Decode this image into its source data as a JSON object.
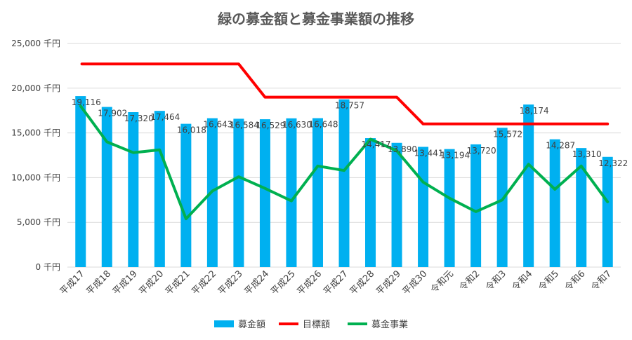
{
  "chart_data": {
    "type": "bar",
    "title": "緑の募金額と募金事業額の推移",
    "categories": [
      "平成17",
      "平成18",
      "平成19",
      "平成20",
      "平成21",
      "平成22",
      "平成23",
      "平成24",
      "平成25",
      "平成26",
      "平成27",
      "平成28",
      "平成29",
      "平成30",
      "令和元",
      "令和2",
      "令和3",
      "令和4",
      "令和5",
      "令和6",
      "令和7"
    ],
    "y_ticks": [
      "0 千円",
      "5,000 千円",
      "10,000 千円",
      "15,000 千円",
      "20,000 千円",
      "25,000 千円"
    ],
    "ylim": [
      0,
      25000
    ],
    "grid": true,
    "series": [
      {
        "name": "募金額",
        "type": "bar",
        "color": "#00B0F0",
        "values": [
          19116,
          17902,
          17320,
          17464,
          16018,
          16643,
          16584,
          16529,
          16630,
          16648,
          18757,
          14417,
          13890,
          13441,
          13194,
          13720,
          15572,
          18174,
          14287,
          13310,
          12322
        ],
        "labels": [
          "19,116",
          "17,902",
          "17,320",
          "17,464",
          "16,018",
          "16,643",
          "16,584",
          "16,529",
          "16,630",
          "16,648",
          "18,757",
          "14,417",
          "13,890",
          "13,441",
          "13,194",
          "13,720",
          "15,572",
          "18,174",
          "14,287",
          "13,310",
          "12,322"
        ]
      },
      {
        "name": "目標額",
        "type": "line",
        "color": "#FF0000",
        "values": [
          22700,
          22700,
          22700,
          22700,
          22700,
          22700,
          22700,
          19000,
          19000,
          19000,
          19000,
          19000,
          19000,
          16000,
          16000,
          16000,
          16000,
          16000,
          16000,
          16000,
          16000
        ]
      },
      {
        "name": "募金事業",
        "type": "line",
        "color": "#00B050",
        "values": [
          18000,
          14000,
          12800,
          13100,
          5400,
          8500,
          10100,
          8800,
          7400,
          11300,
          10800,
          14300,
          13000,
          9500,
          7700,
          6200,
          7500,
          11500,
          8700,
          11300,
          7300
        ]
      }
    ],
    "legend_position": "bottom"
  }
}
